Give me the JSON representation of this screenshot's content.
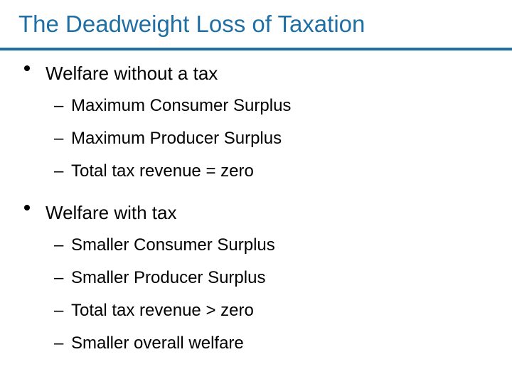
{
  "slide": {
    "title": "The Deadweight Loss of Taxation",
    "accent_color": "#1f6fa5",
    "bullets": [
      {
        "text": "Welfare without a tax",
        "sub": [
          "Maximum Consumer Surplus",
          "Maximum Producer Surplus",
          "Total tax revenue = zero"
        ]
      },
      {
        "text": "Welfare with tax",
        "sub": [
          "Smaller Consumer Surplus",
          "Smaller Producer Surplus",
          "Total tax revenue > zero",
          "Smaller overall welfare"
        ]
      }
    ]
  }
}
